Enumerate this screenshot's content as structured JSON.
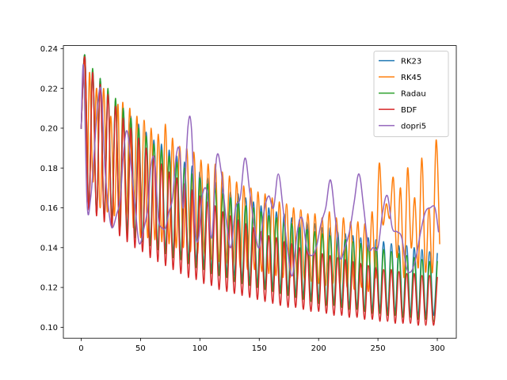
{
  "chart_data": {
    "type": "line",
    "title": "",
    "xlabel": "",
    "ylabel": "",
    "xlim": [
      -15,
      316
    ],
    "ylim": [
      0.0945,
      0.2415
    ],
    "xticks": [
      0,
      50,
      100,
      150,
      200,
      250,
      300
    ],
    "yticks": [
      0.1,
      0.12,
      0.14,
      0.16,
      0.18,
      0.2,
      0.22,
      0.24
    ],
    "ytick_labels": [
      "0.10",
      "0.12",
      "0.14",
      "0.16",
      "0.18",
      "0.20",
      "0.22",
      "0.24"
    ],
    "grid": false,
    "legend_position": "upper right",
    "period": 6.45,
    "series": [
      {
        "name": "RK23",
        "color": "#1f77b4",
        "x": [
          0,
          3.2,
          6.4,
          9.7,
          12.9,
          16.1,
          19.4,
          22.6,
          25.8,
          29.0,
          32.3,
          35.5,
          38.7,
          41.9,
          45.2,
          48.4,
          51.6,
          54.8,
          58.1,
          61.3,
          64.5,
          67.7,
          71.0,
          74.2,
          77.4,
          80.6,
          83.9,
          87.1,
          90.3,
          93.5,
          96.8,
          100.0,
          103.2,
          106.5,
          109.7,
          112.9,
          116.1,
          119.4,
          122.6,
          125.8,
          129.0,
          132.3,
          135.5,
          138.7,
          141.9,
          145.2,
          148.4,
          151.6,
          154.8,
          158.1,
          161.3,
          164.5,
          167.7,
          171.0,
          174.2,
          177.4,
          180.6,
          183.9,
          187.1,
          190.3,
          193.5,
          196.8,
          200.0,
          203.2,
          206.5,
          209.7,
          212.9,
          216.1,
          219.4,
          222.6,
          225.8,
          229.0,
          232.3,
          235.5,
          238.7,
          241.9,
          245.2,
          248.4,
          251.6,
          254.8,
          258.1,
          261.3,
          264.5,
          267.7,
          271.0,
          274.2,
          277.4,
          280.6,
          283.9,
          287.1,
          290.3,
          293.5,
          296.8,
          300.0
        ],
        "y": [
          0.2,
          0.236,
          0.16,
          0.229,
          0.157,
          0.225,
          0.155,
          0.219,
          0.154,
          0.214,
          0.15,
          0.21,
          0.148,
          0.206,
          0.146,
          0.202,
          0.144,
          0.198,
          0.142,
          0.194,
          0.14,
          0.192,
          0.139,
          0.189,
          0.137,
          0.186,
          0.135,
          0.183,
          0.134,
          0.181,
          0.133,
          0.178,
          0.131,
          0.175,
          0.129,
          0.173,
          0.128,
          0.171,
          0.127,
          0.168,
          0.126,
          0.167,
          0.124,
          0.165,
          0.123,
          0.163,
          0.122,
          0.161,
          0.121,
          0.16,
          0.12,
          0.158,
          0.119,
          0.157,
          0.118,
          0.155,
          0.117,
          0.154,
          0.116,
          0.153,
          0.115,
          0.152,
          0.114,
          0.15,
          0.113,
          0.15,
          0.112,
          0.148,
          0.112,
          0.147,
          0.111,
          0.146,
          0.11,
          0.145,
          0.11,
          0.145,
          0.109,
          0.144,
          0.109,
          0.143,
          0.108,
          0.142,
          0.108,
          0.141,
          0.107,
          0.141,
          0.107,
          0.14,
          0.106,
          0.139,
          0.106,
          0.138,
          0.106,
          0.137
        ]
      },
      {
        "name": "RK45",
        "color": "#ff7f0e",
        "x": [
          0,
          3,
          5,
          7,
          10,
          13,
          16,
          19,
          22,
          25,
          28,
          31,
          33,
          35,
          38,
          41,
          44,
          47,
          50,
          53,
          56,
          59,
          62,
          65,
          68,
          71,
          74,
          77,
          80,
          83,
          86,
          89,
          92,
          95,
          98,
          101,
          104,
          107,
          110,
          113,
          116,
          119,
          122,
          125,
          128,
          131,
          134,
          137,
          140,
          143,
          146,
          149,
          152,
          155,
          158,
          161,
          164,
          167,
          170,
          173,
          176,
          179,
          182,
          185,
          188,
          191,
          194,
          197,
          200,
          203,
          206,
          209,
          212,
          215,
          218,
          221,
          224,
          227,
          230,
          233,
          236,
          239,
          242,
          245,
          248,
          251,
          254,
          257,
          260,
          263,
          266,
          269,
          272,
          275,
          278,
          281,
          284,
          287,
          290,
          293,
          296,
          299,
          302
        ],
        "y": [
          0.2,
          0.234,
          0.163,
          0.228,
          0.173,
          0.22,
          0.16,
          0.22,
          0.158,
          0.206,
          0.156,
          0.212,
          0.15,
          0.213,
          0.155,
          0.21,
          0.15,
          0.206,
          0.145,
          0.204,
          0.145,
          0.2,
          0.144,
          0.197,
          0.143,
          0.202,
          0.142,
          0.195,
          0.14,
          0.191,
          0.14,
          0.19,
          0.138,
          0.188,
          0.137,
          0.184,
          0.136,
          0.182,
          0.134,
          0.182,
          0.133,
          0.178,
          0.132,
          0.176,
          0.131,
          0.173,
          0.13,
          0.171,
          0.129,
          0.17,
          0.129,
          0.168,
          0.128,
          0.167,
          0.127,
          0.165,
          0.126,
          0.163,
          0.125,
          0.162,
          0.125,
          0.16,
          0.124,
          0.159,
          0.124,
          0.157,
          0.123,
          0.157,
          0.122,
          0.155,
          0.121,
          0.158,
          0.122,
          0.155,
          0.121,
          0.155,
          0.12,
          0.153,
          0.119,
          0.153,
          0.12,
          0.152,
          0.118,
          0.158,
          0.125,
          0.182,
          0.152,
          0.162,
          0.155,
          0.175,
          0.135,
          0.17,
          0.125,
          0.18,
          0.14,
          0.165,
          0.13,
          0.185,
          0.128,
          0.16,
          0.128,
          0.194,
          0.142
        ]
      },
      {
        "name": "Radau",
        "color": "#2ca02c",
        "x": [
          0,
          3.2,
          6.4,
          9.7,
          12.9,
          16.1,
          19.4,
          22.6,
          25.8,
          29.0,
          32.3,
          35.5,
          38.7,
          41.9,
          45.2,
          48.4,
          51.6,
          54.8,
          58.1,
          61.3,
          64.5,
          67.7,
          71.0,
          74.2,
          77.4,
          80.6,
          83.9,
          87.1,
          90.3,
          93.5,
          96.8,
          100.0,
          103.2,
          106.5,
          109.7,
          112.9,
          116.1,
          119.4,
          122.6,
          125.8,
          129.0,
          132.3,
          135.5,
          138.7,
          141.9,
          145.2,
          148.4,
          151.6,
          154.8,
          158.1,
          161.3,
          164.5,
          167.7,
          171.0,
          174.2,
          177.4,
          180.6,
          183.9,
          187.1,
          190.3,
          193.5,
          196.8,
          200.0,
          203.2,
          206.5,
          209.7,
          212.9,
          216.1,
          219.4,
          222.6,
          225.8,
          229.0,
          232.3,
          235.5,
          238.7,
          241.9,
          245.2,
          248.4,
          251.6,
          254.8,
          258.1,
          261.3,
          264.5,
          267.7,
          271.0,
          274.2,
          277.4,
          280.6,
          283.9,
          287.1,
          290.3,
          293.5,
          296.8,
          300.0
        ],
        "y": [
          0.2,
          0.236,
          0.16,
          0.23,
          0.157,
          0.225,
          0.155,
          0.22,
          0.154,
          0.215,
          0.15,
          0.21,
          0.147,
          0.205,
          0.145,
          0.2,
          0.143,
          0.196,
          0.141,
          0.192,
          0.139,
          0.189,
          0.137,
          0.186,
          0.135,
          0.183,
          0.134,
          0.18,
          0.132,
          0.177,
          0.13,
          0.175,
          0.129,
          0.172,
          0.127,
          0.17,
          0.126,
          0.167,
          0.125,
          0.165,
          0.123,
          0.163,
          0.122,
          0.161,
          0.121,
          0.16,
          0.12,
          0.158,
          0.119,
          0.156,
          0.118,
          0.155,
          0.117,
          0.153,
          0.116,
          0.152,
          0.115,
          0.15,
          0.114,
          0.149,
          0.113,
          0.148,
          0.112,
          0.147,
          0.111,
          0.146,
          0.111,
          0.145,
          0.11,
          0.144,
          0.109,
          0.143,
          0.109,
          0.142,
          0.108,
          0.141,
          0.107,
          0.14,
          0.107,
          0.139,
          0.106,
          0.138,
          0.106,
          0.137,
          0.105,
          0.136,
          0.105,
          0.135,
          0.104,
          0.134,
          0.104,
          0.133,
          0.103,
          0.133
        ]
      },
      {
        "name": "BDF",
        "color": "#d62728",
        "x": [
          0,
          3.2,
          6.4,
          9.7,
          12.9,
          16.1,
          19.4,
          22.6,
          25.8,
          29.0,
          32.3,
          35.5,
          38.7,
          41.9,
          45.2,
          48.4,
          51.6,
          54.8,
          58.1,
          61.3,
          64.5,
          67.7,
          71.0,
          74.2,
          77.4,
          80.6,
          83.9,
          87.1,
          90.3,
          93.5,
          96.8,
          100.0,
          103.2,
          106.5,
          109.7,
          112.9,
          116.1,
          119.4,
          122.6,
          125.8,
          129.0,
          132.3,
          135.5,
          138.7,
          141.9,
          145.2,
          148.4,
          151.6,
          154.8,
          158.1,
          161.3,
          164.5,
          167.7,
          171.0,
          174.2,
          177.4,
          180.6,
          183.9,
          187.1,
          190.3,
          193.5,
          196.8,
          200.0,
          203.2,
          206.5,
          209.7,
          212.9,
          216.1,
          219.4,
          222.6,
          225.8,
          229.0,
          232.3,
          235.5,
          238.7,
          241.9,
          245.2,
          248.4,
          251.6,
          254.8,
          258.1,
          261.3,
          264.5,
          267.7,
          271.0,
          274.2,
          277.4,
          280.6,
          283.9,
          287.1,
          290.3,
          293.5,
          296.8,
          300.0
        ],
        "y": [
          0.2,
          0.235,
          0.159,
          0.228,
          0.156,
          0.222,
          0.153,
          0.217,
          0.15,
          0.211,
          0.146,
          0.205,
          0.143,
          0.2,
          0.14,
          0.195,
          0.138,
          0.19,
          0.135,
          0.186,
          0.133,
          0.182,
          0.131,
          0.178,
          0.129,
          0.175,
          0.127,
          0.172,
          0.125,
          0.169,
          0.124,
          0.166,
          0.122,
          0.163,
          0.121,
          0.161,
          0.119,
          0.158,
          0.118,
          0.156,
          0.117,
          0.154,
          0.116,
          0.152,
          0.115,
          0.15,
          0.114,
          0.148,
          0.113,
          0.146,
          0.112,
          0.145,
          0.111,
          0.143,
          0.11,
          0.142,
          0.11,
          0.14,
          0.109,
          0.139,
          0.108,
          0.138,
          0.108,
          0.137,
          0.107,
          0.136,
          0.106,
          0.135,
          0.106,
          0.134,
          0.105,
          0.133,
          0.105,
          0.132,
          0.104,
          0.131,
          0.104,
          0.13,
          0.103,
          0.129,
          0.103,
          0.129,
          0.102,
          0.128,
          0.102,
          0.127,
          0.102,
          0.127,
          0.101,
          0.126,
          0.101,
          0.126,
          0.101,
          0.125
        ]
      },
      {
        "name": "dopri5",
        "color": "#9467bd",
        "x": [
          0,
          2,
          5,
          8,
          11,
          14,
          17,
          20,
          23,
          26,
          30,
          33,
          36,
          39,
          43,
          46,
          49,
          53,
          56,
          59,
          62,
          65,
          68,
          71,
          74,
          77,
          80,
          83,
          86,
          90,
          93,
          96,
          99,
          102,
          106,
          110,
          114,
          118,
          122,
          126,
          130,
          134,
          138,
          142,
          146,
          150,
          154,
          158,
          162,
          166,
          170,
          174,
          178,
          182,
          186,
          190,
          194,
          198,
          202,
          206,
          210,
          214,
          218,
          222,
          226,
          230,
          234,
          238,
          242,
          246,
          250,
          254,
          258,
          262,
          266,
          270,
          274,
          278,
          282,
          286,
          290,
          294,
          298,
          301
        ],
        "y": [
          0.2,
          0.231,
          0.162,
          0.165,
          0.188,
          0.213,
          0.218,
          0.18,
          0.16,
          0.15,
          0.157,
          0.165,
          0.19,
          0.198,
          0.175,
          0.157,
          0.142,
          0.15,
          0.16,
          0.182,
          0.183,
          0.155,
          0.15,
          0.15,
          0.158,
          0.165,
          0.186,
          0.188,
          0.16,
          0.201,
          0.199,
          0.15,
          0.145,
          0.166,
          0.168,
          0.145,
          0.185,
          0.178,
          0.155,
          0.14,
          0.16,
          0.165,
          0.185,
          0.168,
          0.15,
          0.14,
          0.158,
          0.166,
          0.16,
          0.177,
          0.16,
          0.138,
          0.126,
          0.148,
          0.155,
          0.14,
          0.136,
          0.14,
          0.152,
          0.16,
          0.174,
          0.155,
          0.135,
          0.14,
          0.148,
          0.163,
          0.177,
          0.16,
          0.14,
          0.14,
          0.14,
          0.158,
          0.166,
          0.15,
          0.148,
          0.145,
          0.13,
          0.128,
          0.135,
          0.148,
          0.158,
          0.16,
          0.16,
          0.148
        ]
      }
    ]
  }
}
